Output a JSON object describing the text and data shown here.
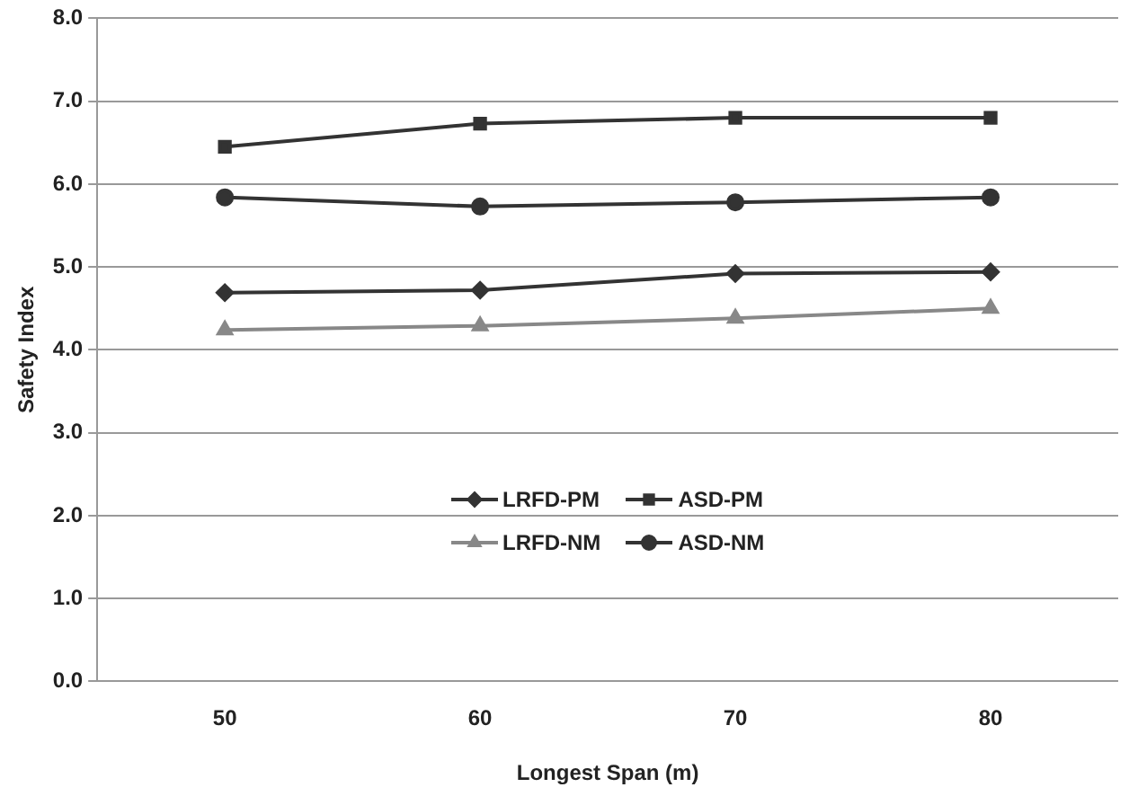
{
  "chart_data": {
    "type": "line",
    "xlabel": "Longest Span (m)",
    "ylabel": "Safety Index",
    "categories": [
      "50",
      "60",
      "70",
      "80"
    ],
    "ylim": [
      0,
      8
    ],
    "yticks": [
      {
        "value": 0,
        "label": "0.0"
      },
      {
        "value": 1,
        "label": "1.0"
      },
      {
        "value": 2,
        "label": "2.0"
      },
      {
        "value": 3,
        "label": "3.0"
      },
      {
        "value": 4,
        "label": "4.0"
      },
      {
        "value": 5,
        "label": "5.0"
      },
      {
        "value": 6,
        "label": "6.0"
      },
      {
        "value": 7,
        "label": "7.0"
      },
      {
        "value": 8,
        "label": "8.0"
      }
    ],
    "grid": "y",
    "legend": "bottom",
    "line_style": "solid",
    "series": [
      {
        "name": "LRFD-PM",
        "color": "#333333",
        "marker": "diamond",
        "values": [
          4.69,
          4.72,
          4.92,
          4.94
        ]
      },
      {
        "name": "ASD-PM",
        "color": "#333333",
        "marker": "square",
        "values": [
          6.45,
          6.73,
          6.8,
          6.8
        ]
      },
      {
        "name": "LRFD-NM",
        "color": "#888888",
        "marker": "triangle",
        "values": [
          4.24,
          4.29,
          4.38,
          4.5
        ]
      },
      {
        "name": "ASD-NM",
        "color": "#333333",
        "marker": "circle",
        "values": [
          5.84,
          5.73,
          5.78,
          5.84
        ]
      }
    ]
  }
}
